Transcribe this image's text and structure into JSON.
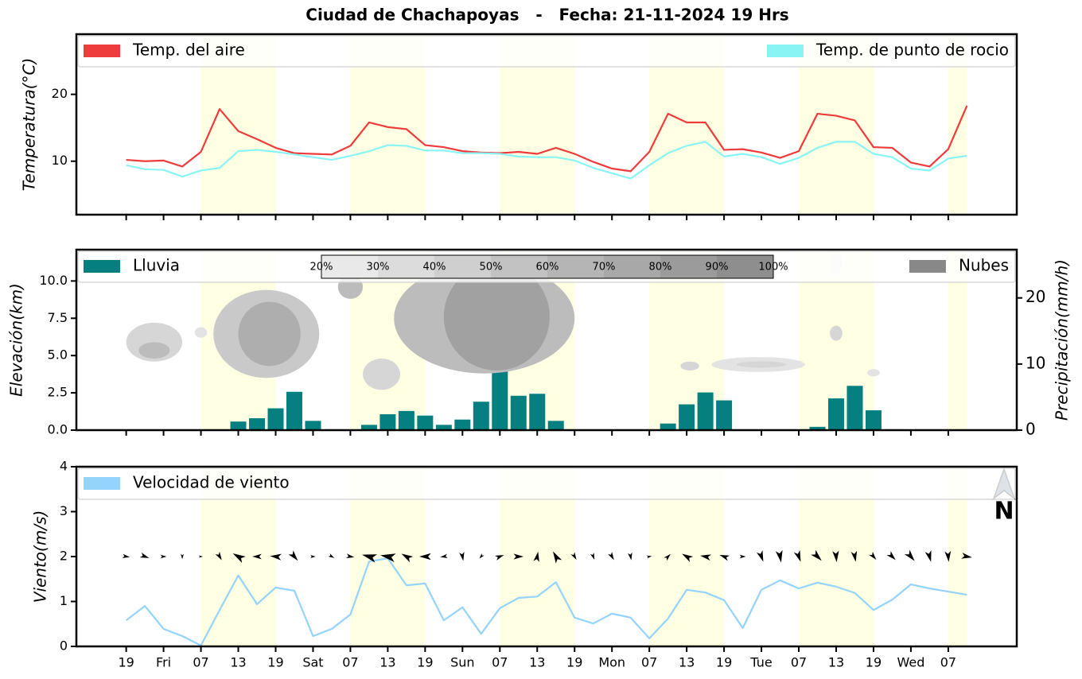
{
  "title": "Ciudad de Chachapoyas   -   Fecha: 21-11-2024 19 Hrs",
  "north_label": "N",
  "chart_data": [
    {
      "type": "line",
      "y_label": "Temperatura(°C)",
      "x": [
        0,
        3,
        6,
        9,
        12,
        15,
        18,
        21,
        24,
        27,
        30,
        33,
        36,
        39,
        42,
        45,
        48,
        51,
        54,
        57,
        60,
        63,
        66,
        69,
        72,
        75,
        78,
        81,
        84,
        87,
        90,
        93,
        96,
        99,
        102,
        105,
        108,
        111,
        114,
        117,
        120,
        123,
        126,
        129,
        132,
        135
      ],
      "xlim": [
        -8,
        143
      ],
      "xticks": [
        0,
        6,
        12,
        18,
        24,
        30,
        36,
        42,
        48,
        54,
        60,
        66,
        72,
        78,
        84,
        90,
        96,
        102,
        108,
        114,
        120,
        126,
        132
      ],
      "ylim": [
        2,
        29
      ],
      "yticks": [
        10,
        20
      ],
      "daylight": [
        [
          12,
          24
        ],
        [
          36,
          48
        ],
        [
          60,
          72
        ],
        [
          84,
          96
        ],
        [
          108,
          120
        ],
        [
          132,
          135
        ]
      ],
      "band_color": "#ffffe3",
      "legend": "upper",
      "series": [
        {
          "name": "Temp. del aire",
          "color": "#ee3b3b",
          "values": [
            10.2,
            10.0,
            10.1,
            9.2,
            11.4,
            17.8,
            14.5,
            13.3,
            12.0,
            11.2,
            11.1,
            11.0,
            12.3,
            15.8,
            15.1,
            14.8,
            12.4,
            12.1,
            11.5,
            11.3,
            11.2,
            11.4,
            11.1,
            12.0,
            11.1,
            9.9,
            8.9,
            8.5,
            11.4,
            17.1,
            15.8,
            15.8,
            11.7,
            11.8,
            11.3,
            10.5,
            11.5,
            17.1,
            16.8,
            16.1,
            12.1,
            12.0,
            9.8,
            9.2,
            11.8,
            18.3
          ]
        },
        {
          "name": "Temp. de punto de rocio",
          "color": "#88f4f4",
          "values": [
            9.4,
            8.8,
            8.7,
            7.7,
            8.6,
            9.0,
            11.5,
            11.7,
            11.4,
            11.0,
            10.6,
            10.2,
            10.8,
            11.5,
            12.4,
            12.3,
            11.6,
            11.6,
            11.2,
            11.2,
            11.1,
            10.7,
            10.6,
            10.6,
            10.1,
            9.0,
            8.2,
            7.4,
            9.4,
            11.2,
            12.3,
            12.9,
            10.7,
            11.1,
            10.6,
            9.6,
            10.5,
            12.0,
            12.9,
            12.9,
            11.1,
            10.6,
            8.9,
            8.6,
            10.4,
            10.8
          ]
        }
      ]
    },
    {
      "type": "bar",
      "y_label": "Elevación(km)",
      "y2_label": "Precipitación(mm/h)",
      "x": [
        0,
        3,
        6,
        9,
        12,
        15,
        18,
        21,
        24,
        27,
        30,
        33,
        36,
        39,
        42,
        45,
        48,
        51,
        54,
        57,
        60,
        63,
        66,
        69,
        72,
        75,
        78,
        81,
        84,
        87,
        90,
        93,
        96,
        99,
        102,
        105,
        108,
        111,
        114,
        117,
        120,
        123,
        126,
        129,
        132,
        135
      ],
      "xlim": [
        -8,
        143
      ],
      "xticks": [
        0,
        6,
        12,
        18,
        24,
        30,
        36,
        42,
        48,
        54,
        60,
        66,
        72,
        78,
        84,
        90,
        96,
        102,
        108,
        114,
        120,
        126,
        132
      ],
      "ylim": [
        0,
        12.1
      ],
      "yticks": [
        {
          "value": 0,
          "label": "0.0"
        },
        {
          "value": 2.5,
          "label": "2.5"
        },
        {
          "value": 5,
          "label": "5.0"
        },
        {
          "value": 7.5,
          "label": "7.5"
        },
        {
          "value": 10,
          "label": "10.0"
        }
      ],
      "y2lim": [
        0,
        27.3
      ],
      "y2ticks": [
        0,
        10,
        20
      ],
      "daylight": [
        [
          12,
          24
        ],
        [
          36,
          48
        ],
        [
          60,
          72
        ],
        [
          84,
          96
        ],
        [
          108,
          120
        ],
        [
          132,
          135
        ]
      ],
      "band_color": "#ffffe3",
      "legend": "upper",
      "colorbar": [
        {
          "value": 20,
          "label": "20%"
        },
        {
          "value": 30,
          "label": "30%"
        },
        {
          "value": 40,
          "label": "40%"
        },
        {
          "value": 50,
          "label": "50%"
        },
        {
          "value": 60,
          "label": "60%"
        },
        {
          "value": 70,
          "label": "70%"
        },
        {
          "value": 80,
          "label": "80%"
        },
        {
          "value": 90,
          "label": "90%"
        },
        {
          "value": 100,
          "label": "100%"
        }
      ],
      "series": [
        {
          "name": "Lluvia",
          "color": "#057f7f",
          "axis": "y2",
          "values": [
            0,
            0,
            0,
            0,
            0,
            0,
            1.3,
            1.8,
            3.3,
            5.8,
            1.4,
            0,
            0,
            0.8,
            2.4,
            2.9,
            2.2,
            0.8,
            1.6,
            4.3,
            17.5,
            5.2,
            5.5,
            1.4,
            0,
            0,
            0,
            0,
            0,
            1.0,
            3.9,
            5.7,
            4.5,
            0,
            0,
            0,
            0,
            0.5,
            4.8,
            6.7,
            3.0,
            0,
            0,
            0,
            0,
            0
          ]
        },
        {
          "name": "Nubes",
          "color": "#888888",
          "blobs": [
            {
              "x": [
                94,
                109
              ],
              "elevation": [
                3.9,
                4.9
              ],
              "cover": 30
            },
            {
              "x": [
                11,
                13
              ],
              "elevation": [
                6.2,
                6.9
              ],
              "cover": 30
            },
            {
              "x": [
                119,
                121
              ],
              "elevation": [
                3.6,
                4.1
              ],
              "cover": 30
            },
            {
              "x": [
                113,
                115
              ],
              "elevation": [
                10.4,
                12
              ],
              "cover": 20
            },
            {
              "x": [
                0,
                9
              ],
              "elevation": [
                4.6,
                7.2
              ],
              "cover": 40
            },
            {
              "x": [
                38,
                44
              ],
              "elevation": [
                2.7,
                4.8
              ],
              "cover": 40
            },
            {
              "x": [
                89,
                92
              ],
              "elevation": [
                4,
                4.6
              ],
              "cover": 40
            },
            {
              "x": [
                113,
                115
              ],
              "elevation": [
                6,
                7
              ],
              "cover": 40
            },
            {
              "x": [
                98,
                106
              ],
              "elevation": [
                4.2,
                4.6
              ],
              "cover": 40
            },
            {
              "x": [
                14,
                31
              ],
              "elevation": [
                3.5,
                9.4
              ],
              "cover": 50
            },
            {
              "x": [
                43,
                72
              ],
              "elevation": [
                3.8,
                11.2
              ],
              "cover": 60
            },
            {
              "x": [
                2,
                7
              ],
              "elevation": [
                4.8,
                5.9
              ],
              "cover": 60
            },
            {
              "x": [
                34,
                38
              ],
              "elevation": [
                8.8,
                10.4
              ],
              "cover": 60
            },
            {
              "x": [
                18,
                28
              ],
              "elevation": [
                4.3,
                8.6
              ],
              "cover": 70
            },
            {
              "x": [
                51,
                68
              ],
              "elevation": [
                4,
                11.2
              ],
              "cover": 80
            }
          ]
        }
      ]
    },
    {
      "type": "line",
      "y_label": "Viento(m/s)",
      "x": [
        0,
        3,
        6,
        9,
        12,
        15,
        18,
        21,
        24,
        27,
        30,
        33,
        36,
        39,
        42,
        45,
        48,
        51,
        54,
        57,
        60,
        63,
        66,
        69,
        72,
        75,
        78,
        81,
        84,
        87,
        90,
        93,
        96,
        99,
        102,
        105,
        108,
        111,
        114,
        117,
        120,
        123,
        126,
        129,
        132,
        135
      ],
      "xlim": [
        -8,
        143
      ],
      "xticks": [
        {
          "value": 0,
          "label": "19"
        },
        {
          "value": 6,
          "label": "Fri"
        },
        {
          "value": 12,
          "label": "07"
        },
        {
          "value": 18,
          "label": "13"
        },
        {
          "value": 24,
          "label": "19"
        },
        {
          "value": 30,
          "label": "Sat"
        },
        {
          "value": 36,
          "label": "07"
        },
        {
          "value": 42,
          "label": "13"
        },
        {
          "value": 48,
          "label": "19"
        },
        {
          "value": 54,
          "label": "Sun"
        },
        {
          "value": 60,
          "label": "07"
        },
        {
          "value": 66,
          "label": "13"
        },
        {
          "value": 72,
          "label": "19"
        },
        {
          "value": 78,
          "label": "Mon"
        },
        {
          "value": 84,
          "label": "07"
        },
        {
          "value": 90,
          "label": "13"
        },
        {
          "value": 96,
          "label": "19"
        },
        {
          "value": 102,
          "label": "Tue"
        },
        {
          "value": 108,
          "label": "07"
        },
        {
          "value": 114,
          "label": "13"
        },
        {
          "value": 120,
          "label": "19"
        },
        {
          "value": 126,
          "label": "Wed"
        },
        {
          "value": 132,
          "label": "07"
        }
      ],
      "ylim": [
        0,
        4
      ],
      "yticks": [
        0,
        1,
        2,
        3,
        4
      ],
      "daylight": [
        [
          12,
          24
        ],
        [
          36,
          48
        ],
        [
          60,
          72
        ],
        [
          84,
          96
        ],
        [
          108,
          120
        ],
        [
          132,
          135
        ]
      ],
      "band_color": "#ffffe3",
      "legend": "upper",
      "arrow_level": 2,
      "directions": [
        100,
        110,
        90,
        180,
        90,
        150,
        300,
        270,
        275,
        140,
        90,
        120,
        100,
        285,
        280,
        300,
        270,
        260,
        170,
        220,
        70,
        90,
        10,
        330,
        150,
        160,
        150,
        170,
        80,
        45,
        300,
        280,
        290,
        90,
        160,
        170,
        160,
        135,
        175,
        170,
        140,
        135,
        140,
        165,
        175,
        100
      ],
      "series": [
        {
          "name": "Velocidad de viento",
          "color": "#94d3fb",
          "values": [
            0.58,
            0.9,
            0.39,
            0.23,
            0.02,
            0.81,
            1.58,
            0.94,
            1.31,
            1.24,
            0.23,
            0.39,
            0.71,
            1.89,
            1.96,
            1.36,
            1.4,
            0.58,
            0.87,
            0.28,
            0.85,
            1.08,
            1.11,
            1.43,
            0.64,
            0.51,
            0.73,
            0.64,
            0.18,
            0.62,
            1.26,
            1.2,
            1.03,
            0.41,
            1.26,
            1.47,
            1.29,
            1.42,
            1.33,
            1.19,
            0.81,
            1.04,
            1.38,
            1.29,
            1.22,
            1.15
          ]
        }
      ]
    }
  ]
}
